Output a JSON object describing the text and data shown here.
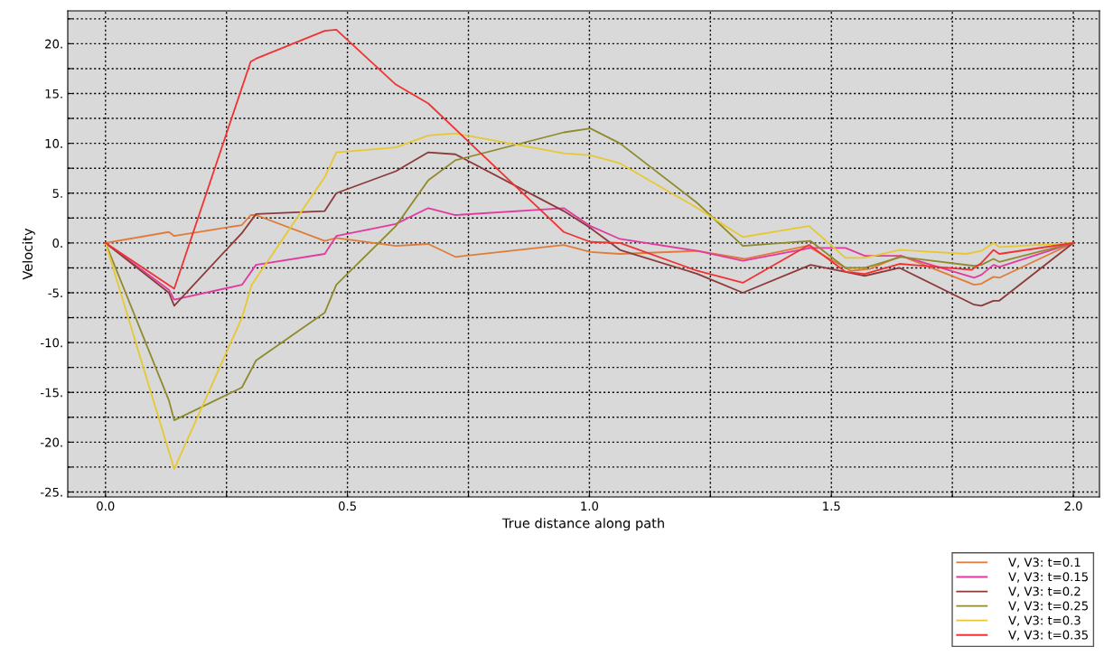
{
  "chart_data": {
    "type": "line",
    "xlabel": "True distance along path",
    "ylabel": "Velocity",
    "xlim": [
      -0.078,
      2.054
    ],
    "ylim": [
      -25.5,
      23.3
    ],
    "xticks": [
      {
        "value": 0,
        "label": "0.0"
      },
      {
        "value": 0.25,
        "label": null
      },
      {
        "value": 0.5,
        "label": "0.5"
      },
      {
        "value": 0.75,
        "label": null
      },
      {
        "value": 1.0,
        "label": "1.0"
      },
      {
        "value": 1.25,
        "label": null
      },
      {
        "value": 1.5,
        "label": "1.5"
      },
      {
        "value": 1.75,
        "label": null
      },
      {
        "value": 2.0,
        "label": "2.0"
      }
    ],
    "yticks": [
      {
        "value": -25,
        "label": "-25."
      },
      {
        "value": -22.5,
        "label": null
      },
      {
        "value": -20,
        "label": "-20."
      },
      {
        "value": -17.5,
        "label": null
      },
      {
        "value": -15,
        "label": "-15."
      },
      {
        "value": -12.5,
        "label": null
      },
      {
        "value": -10,
        "label": "-10."
      },
      {
        "value": -7.5,
        "label": null
      },
      {
        "value": -5,
        "label": "-5."
      },
      {
        "value": -2.5,
        "label": null
      },
      {
        "value": 0,
        "label": "0."
      },
      {
        "value": 2.5,
        "label": null
      },
      {
        "value": 5,
        "label": "5."
      },
      {
        "value": 7.5,
        "label": null
      },
      {
        "value": 10,
        "label": "10."
      },
      {
        "value": 12.5,
        "label": null
      },
      {
        "value": 15,
        "label": "15."
      },
      {
        "value": 17.5,
        "label": null
      },
      {
        "value": 20,
        "label": "20."
      },
      {
        "value": 22.5,
        "label": null
      }
    ],
    "grid": true,
    "legend": "bottom right",
    "line_style": "solid",
    "marker": "none",
    "series": [
      {
        "name": "V, V3: t=0.1",
        "color": "#e07b39",
        "x": [
          0,
          0.131,
          0.142,
          0.282,
          0.3,
          0.311,
          0.453,
          0.477,
          0.6,
          0.667,
          0.723,
          0.947,
          1.002,
          1.063,
          1.223,
          1.32,
          1.45,
          1.54,
          1.58,
          1.644,
          1.795,
          1.81,
          1.835,
          1.847,
          2.0
        ],
        "values": [
          0,
          1.1,
          0.7,
          1.8,
          2.8,
          2.8,
          0.2,
          0.5,
          -0.3,
          -0.1,
          -1.4,
          -0.2,
          -0.9,
          -1.1,
          -0.8,
          -1.6,
          -0.3,
          -2.8,
          -2.6,
          -1.3,
          -4.2,
          -4.1,
          -3.4,
          -3.5,
          0
        ]
      },
      {
        "name": "V, V3: t=0.15",
        "color": "#e23aa0",
        "x": [
          0,
          0.131,
          0.142,
          0.282,
          0.311,
          0.453,
          0.477,
          0.6,
          0.667,
          0.723,
          0.947,
          1.002,
          1.063,
          1.223,
          1.317,
          1.457,
          1.529,
          1.569,
          1.644,
          1.795,
          1.81,
          1.835,
          1.847,
          2.0
        ],
        "values": [
          0,
          -4.7,
          -5.7,
          -4.2,
          -2.2,
          -1.1,
          0.7,
          1.9,
          3.5,
          2.8,
          3.5,
          1.7,
          0.4,
          -0.8,
          -1.8,
          -0.5,
          -0.5,
          -1.3,
          -1.3,
          -3.5,
          -3.2,
          -2.2,
          -2.4,
          0
        ]
      },
      {
        "name": "V, V3: t=0.2",
        "color": "#8b3a3a",
        "x": [
          0,
          0.131,
          0.142,
          0.282,
          0.311,
          0.453,
          0.477,
          0.6,
          0.667,
          0.723,
          0.947,
          1.002,
          1.063,
          1.223,
          1.317,
          1.457,
          1.529,
          1.569,
          1.641,
          1.795,
          1.81,
          1.835,
          1.847,
          2.0
        ],
        "values": [
          0,
          -5.0,
          -6.3,
          1.0,
          2.9,
          3.2,
          5.0,
          7.2,
          9.1,
          8.9,
          3.2,
          1.5,
          -0.7,
          -3.1,
          -5.0,
          -2.2,
          -2.9,
          -3.3,
          -2.5,
          -6.2,
          -6.3,
          -5.8,
          -5.8,
          0
        ]
      },
      {
        "name": "V, V3: t=0.25",
        "color": "#8f8a2e",
        "x": [
          0,
          0.131,
          0.142,
          0.282,
          0.311,
          0.453,
          0.477,
          0.6,
          0.667,
          0.723,
          0.947,
          1.002,
          1.063,
          1.223,
          1.317,
          1.457,
          1.529,
          1.569,
          1.644,
          1.795,
          1.81,
          1.835,
          1.847,
          2.0
        ],
        "values": [
          0,
          -15.8,
          -17.8,
          -14.5,
          -11.8,
          -7.0,
          -4.2,
          1.7,
          6.3,
          8.3,
          11.1,
          11.5,
          10.0,
          4.0,
          -0.3,
          0.2,
          -2.5,
          -2.5,
          -1.4,
          -2.3,
          -2.2,
          -1.6,
          -1.9,
          0
        ]
      },
      {
        "name": "V, V3: t=0.3",
        "color": "#e8c830",
        "x": [
          0,
          0.142,
          0.282,
          0.302,
          0.453,
          0.477,
          0.6,
          0.667,
          0.723,
          0.947,
          1.002,
          1.063,
          1.223,
          1.317,
          1.454,
          1.529,
          1.569,
          1.641,
          1.779,
          1.81,
          1.835,
          1.847,
          2.0
        ],
        "values": [
          0,
          -22.7,
          -7.5,
          -4.2,
          6.6,
          9.1,
          9.6,
          10.8,
          11.0,
          9.0,
          8.8,
          8.0,
          3.5,
          0.6,
          1.7,
          -1.5,
          -1.5,
          -0.7,
          -1.1,
          -0.8,
          0.0,
          -0.4,
          0
        ]
      },
      {
        "name": "V, V3: t=0.35",
        "color": "#f03232",
        "x": [
          0,
          0.142,
          0.3,
          0.311,
          0.453,
          0.477,
          0.6,
          0.667,
          0.947,
          1.002,
          1.063,
          1.223,
          1.317,
          1.454,
          1.529,
          1.569,
          1.641,
          1.79,
          1.81,
          1.835,
          1.847,
          2.0
        ],
        "values": [
          0,
          -4.6,
          18.2,
          18.5,
          21.3,
          21.4,
          15.9,
          14.0,
          1.1,
          0.1,
          0.0,
          -2.8,
          -4.0,
          -0.2,
          -2.9,
          -3.1,
          -2.1,
          -2.7,
          -2.0,
          -0.7,
          -1.1,
          0
        ]
      }
    ]
  }
}
